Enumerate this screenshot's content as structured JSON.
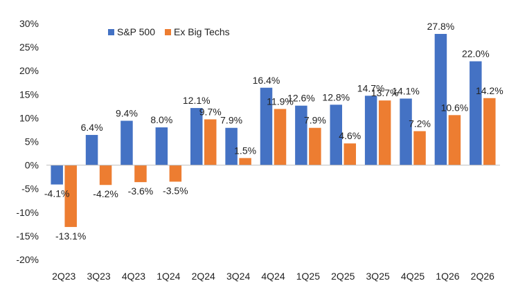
{
  "chart_data": {
    "type": "bar",
    "categories": [
      "2Q23",
      "3Q23",
      "4Q23",
      "1Q24",
      "2Q24",
      "3Q24",
      "4Q24",
      "1Q25",
      "2Q25",
      "3Q25",
      "4Q25",
      "1Q26",
      "2Q26"
    ],
    "series": [
      {
        "name": "S&P 500",
        "color": "#4472C4",
        "values": [
          -4.1,
          6.4,
          9.4,
          8.0,
          12.1,
          7.9,
          16.4,
          12.6,
          12.8,
          14.7,
          14.1,
          27.8,
          22.0
        ],
        "labels": [
          "-4.1%",
          "6.4%",
          "9.4%",
          "8.0%",
          "12.1%",
          "7.9%",
          "16.4%",
          "12.6%",
          "12.8%",
          "14.7%",
          "14.1%",
          "27.8%",
          "22.0%"
        ]
      },
      {
        "name": "Ex Big Techs",
        "color": "#ED7D31",
        "values": [
          -13.1,
          -4.2,
          -3.6,
          -3.5,
          9.7,
          1.5,
          11.9,
          7.9,
          4.6,
          13.7,
          7.2,
          10.6,
          14.2
        ],
        "labels": [
          "-13.1%",
          "-4.2%",
          "-3.6%",
          "-3.5%",
          "9.7%",
          "1.5%",
          "11.9%",
          "7.9%",
          "4.6%",
          "13.7%",
          "7.2%",
          "10.6%",
          "14.2%"
        ]
      }
    ],
    "yticks": [
      30,
      25,
      20,
      15,
      10,
      5,
      0,
      -5,
      -10,
      -15,
      -20
    ],
    "ytick_labels": [
      "30%",
      "25%",
      "20%",
      "15%",
      "10%",
      "5%",
      "0%",
      "-5%",
      "-10%",
      "-15%",
      "-20%"
    ],
    "ylim": [
      -20,
      30
    ],
    "title": "",
    "xlabel": "",
    "ylabel": "",
    "grid": false,
    "legend": "top-left"
  }
}
